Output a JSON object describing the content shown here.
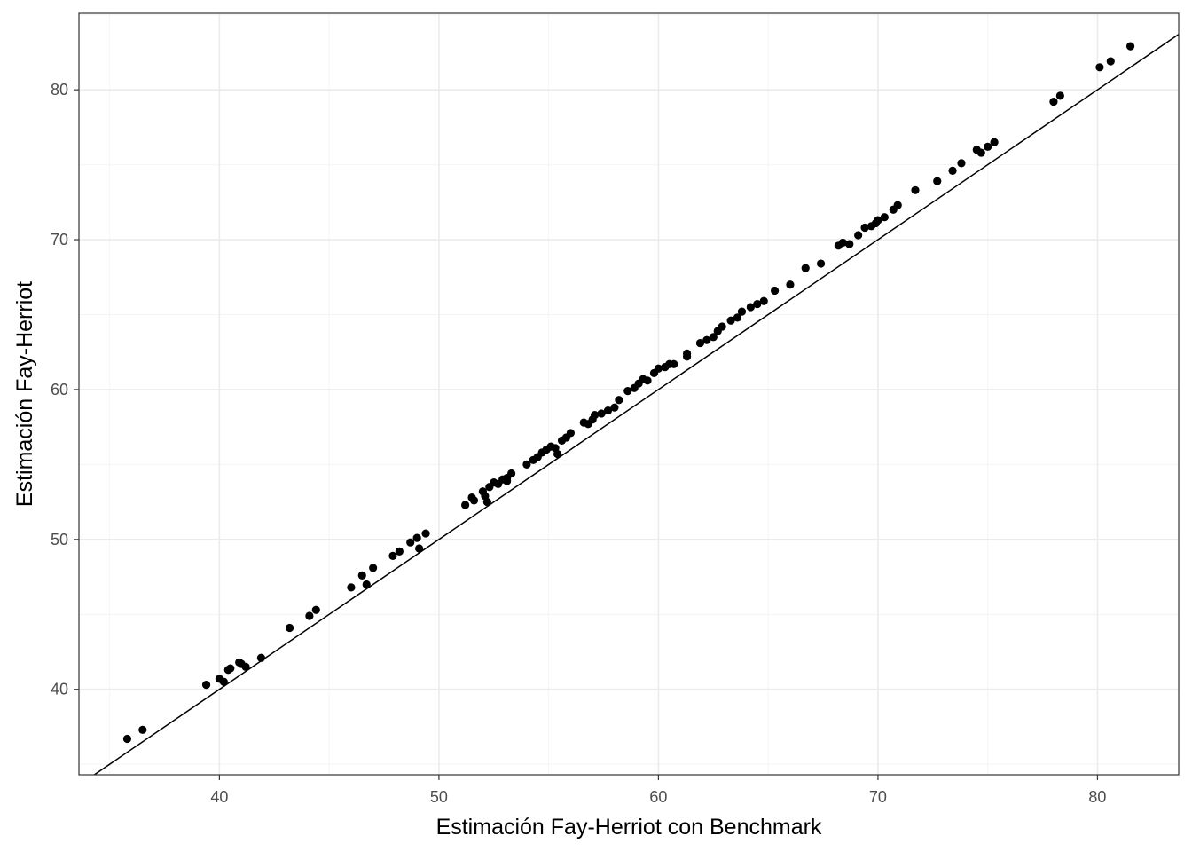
{
  "chart_data": {
    "type": "scatter",
    "title": "",
    "xlabel": "Estimación Fay-Herriot con Benchmark",
    "ylabel": "Estimación Fay-Herriot",
    "xlim": [
      33.6,
      83.7
    ],
    "ylim": [
      34.3,
      85.1
    ],
    "x_ticks": [
      40,
      50,
      60,
      70,
      80
    ],
    "y_ticks": [
      40,
      50,
      60,
      70,
      80
    ],
    "x_tick_labels": [
      "40",
      "50",
      "60",
      "70",
      "80"
    ],
    "y_tick_labels": [
      "40",
      "50",
      "60",
      "70",
      "80"
    ],
    "grid": true,
    "reference_line": {
      "intercept": 0,
      "slope": 1
    },
    "colors": {
      "points": "#000000",
      "line": "#000000",
      "grid_major": "#ebebeb",
      "grid_minor": "#f4f4f4",
      "panel_border": "#333333"
    },
    "series": [
      {
        "x": [
          35.8,
          36.5,
          39.4,
          40.0,
          40.2,
          40.4,
          40.5,
          40.9,
          41.0,
          41.2,
          41.9,
          43.2,
          44.1,
          44.4,
          46.0,
          46.5,
          46.7,
          47.0,
          47.9,
          48.2,
          48.7,
          49.0,
          49.1,
          49.4,
          51.2,
          51.5,
          51.6,
          52.0,
          52.2,
          52.1,
          52.3,
          52.5,
          52.7,
          52.9,
          53.1,
          53.3,
          53.1,
          54.0,
          54.3,
          54.5,
          54.7,
          54.9,
          55.1,
          55.3,
          55.4,
          55.6,
          55.8,
          56.0,
          56.6,
          56.8,
          57.0,
          57.1,
          57.4,
          57.7,
          58.0,
          58.2,
          58.6,
          58.9,
          59.1,
          59.3,
          59.5,
          59.8,
          60.0,
          60.3,
          60.5,
          60.7,
          61.3,
          61.3,
          61.9,
          62.2,
          62.5,
          62.7,
          62.9,
          63.3,
          63.6,
          63.8,
          64.2,
          64.5,
          64.8,
          65.3,
          66.0,
          66.7,
          67.4,
          68.2,
          68.4,
          68.7,
          69.1,
          69.4,
          69.7,
          69.9,
          70.0,
          70.3,
          70.7,
          70.9,
          71.7,
          72.7,
          73.4,
          73.8,
          74.5,
          74.7,
          75.0,
          75.3,
          78.0,
          78.3,
          80.1,
          80.6,
          81.5
        ],
        "y": [
          36.7,
          37.3,
          40.3,
          40.7,
          40.5,
          41.3,
          41.4,
          41.8,
          41.7,
          41.5,
          42.1,
          44.1,
          44.9,
          45.3,
          46.8,
          47.6,
          47.0,
          48.1,
          48.9,
          49.2,
          49.8,
          50.1,
          49.4,
          50.4,
          52.3,
          52.8,
          52.6,
          53.2,
          52.5,
          52.9,
          53.5,
          53.8,
          53.7,
          54.0,
          53.9,
          54.4,
          54.1,
          55.0,
          55.3,
          55.5,
          55.8,
          56.0,
          56.2,
          56.1,
          55.7,
          56.6,
          56.8,
          57.1,
          57.8,
          57.7,
          58.0,
          58.3,
          58.4,
          58.6,
          58.8,
          59.3,
          59.9,
          60.1,
          60.4,
          60.7,
          60.6,
          61.1,
          61.4,
          61.5,
          61.7,
          61.7,
          62.4,
          62.2,
          63.1,
          63.3,
          63.5,
          63.9,
          64.2,
          64.6,
          64.8,
          65.2,
          65.5,
          65.7,
          65.9,
          66.6,
          67.0,
          68.1,
          68.4,
          69.6,
          69.8,
          69.7,
          70.3,
          70.8,
          70.9,
          71.1,
          71.3,
          71.5,
          72.0,
          72.3,
          73.3,
          73.9,
          74.6,
          75.1,
          76.0,
          75.8,
          76.2,
          76.5,
          79.2,
          79.6,
          81.5,
          81.9,
          82.9
        ]
      }
    ]
  }
}
